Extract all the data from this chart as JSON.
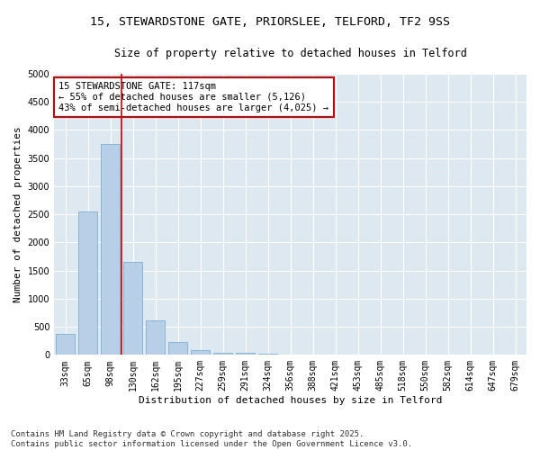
{
  "title1": "15, STEWARDSTONE GATE, PRIORSLEE, TELFORD, TF2 9SS",
  "title2": "Size of property relative to detached houses in Telford",
  "xlabel": "Distribution of detached houses by size in Telford",
  "ylabel": "Number of detached properties",
  "categories": [
    "33sqm",
    "65sqm",
    "98sqm",
    "130sqm",
    "162sqm",
    "195sqm",
    "227sqm",
    "259sqm",
    "291sqm",
    "324sqm",
    "356sqm",
    "388sqm",
    "421sqm",
    "453sqm",
    "485sqm",
    "518sqm",
    "550sqm",
    "582sqm",
    "614sqm",
    "647sqm",
    "679sqm"
  ],
  "values": [
    380,
    2550,
    3750,
    1650,
    620,
    230,
    90,
    45,
    30,
    15,
    0,
    0,
    0,
    0,
    0,
    0,
    0,
    0,
    0,
    0,
    0
  ],
  "bar_color": "#b8cfe8",
  "bar_edge_color": "#7aafd4",
  "vline_color": "#cc0000",
  "annotation_text": "15 STEWARDSTONE GATE: 117sqm\n← 55% of detached houses are smaller (5,126)\n43% of semi-detached houses are larger (4,025) →",
  "annotation_box_color": "#ffffff",
  "annotation_box_edge_color": "#cc0000",
  "ylim": [
    0,
    5000
  ],
  "yticks": [
    0,
    500,
    1000,
    1500,
    2000,
    2500,
    3000,
    3500,
    4000,
    4500,
    5000
  ],
  "background_color": "#dde8f0",
  "grid_color": "#ffffff",
  "fig_background": "#ffffff",
  "footer1": "Contains HM Land Registry data © Crown copyright and database right 2025.",
  "footer2": "Contains public sector information licensed under the Open Government Licence v3.0.",
  "title1_fontsize": 9.5,
  "title2_fontsize": 8.5,
  "xlabel_fontsize": 8,
  "ylabel_fontsize": 8,
  "tick_fontsize": 7,
  "annotation_fontsize": 7.5,
  "footer_fontsize": 6.5
}
